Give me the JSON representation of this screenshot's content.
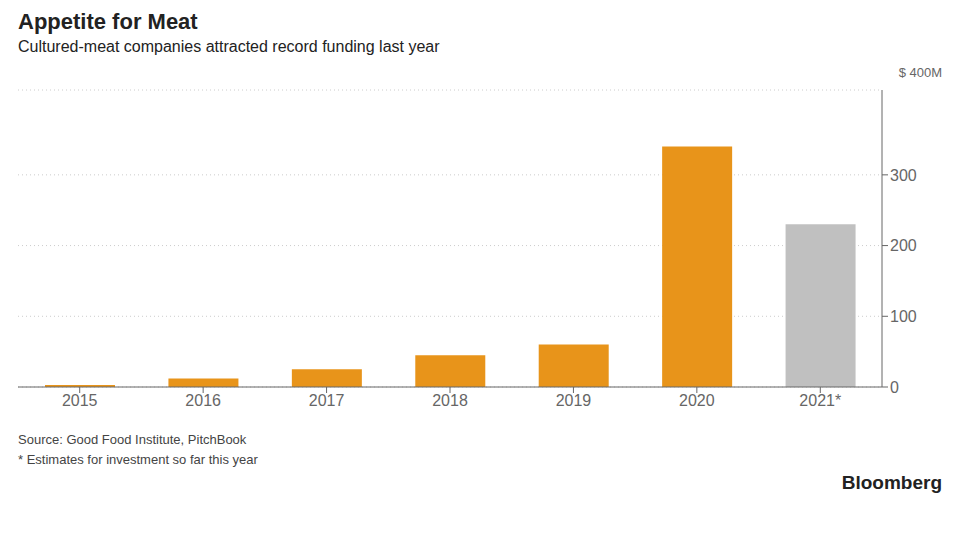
{
  "chart_data": {
    "type": "bar",
    "title": "Appetite for Meat",
    "subtitle": "Cultured-meat companies attracted record funding last year",
    "y_label": "$ 400M",
    "categories": [
      "2015",
      "2016",
      "2017",
      "2018",
      "2019",
      "2020",
      "2021*"
    ],
    "values": [
      3,
      12,
      25,
      45,
      60,
      340,
      230
    ],
    "colors": [
      "#E8941A",
      "#E8941A",
      "#E8941A",
      "#E8941A",
      "#E8941A",
      "#E8941A",
      "#C0C0C0"
    ],
    "ylim": [
      0,
      420
    ],
    "yticks": [
      0,
      100,
      200,
      300
    ],
    "grid": true,
    "annotations": [
      "Source: Good Food Institute, PitchBook",
      "* Estimates for investment so far this year",
      "Bloomberg"
    ]
  }
}
